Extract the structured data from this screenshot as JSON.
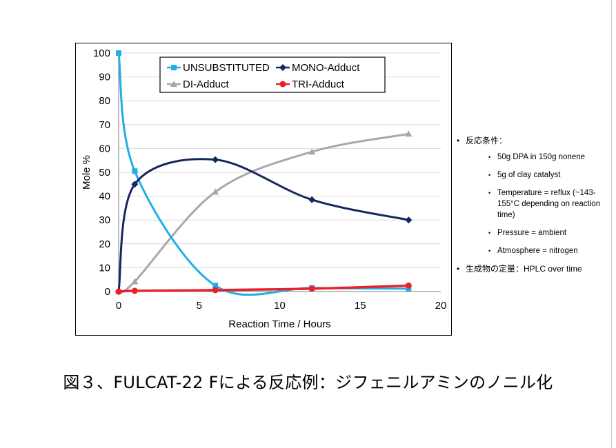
{
  "chart_data": {
    "type": "line",
    "xlabel": "Reaction Time / Hours",
    "ylabel": "Mole %",
    "xlim": [
      0,
      20
    ],
    "ylim": [
      0,
      100
    ],
    "xticks": [
      "0",
      "5",
      "10",
      "15",
      "20"
    ],
    "yticks": [
      "0",
      "10",
      "20",
      "30",
      "40",
      "50",
      "60",
      "70",
      "80",
      "90",
      "100"
    ],
    "grid": true,
    "legend_position": "top-center",
    "series": [
      {
        "name": "UNSUBSTITUTED",
        "color": "#1eaee8",
        "marker": "square",
        "points": [
          [
            0,
            100
          ],
          [
            1,
            50.5
          ],
          [
            6,
            2.5
          ],
          [
            12,
            1.5
          ],
          [
            18,
            1.2
          ]
        ]
      },
      {
        "name": "MONO-Adduct",
        "color": "#14285e",
        "marker": "diamond",
        "points": [
          [
            0,
            0
          ],
          [
            1,
            45
          ],
          [
            6,
            55.3
          ],
          [
            12,
            38.5
          ],
          [
            18,
            30
          ]
        ]
      },
      {
        "name": "DI-Adduct",
        "color": "#a8a8a8",
        "marker": "triangle",
        "points": [
          [
            0,
            0
          ],
          [
            1,
            4.2
          ],
          [
            6,
            41.8
          ],
          [
            12,
            58.6
          ],
          [
            18,
            66.1
          ]
        ]
      },
      {
        "name": "TRI-Adduct",
        "color": "#e8222a",
        "marker": "circle",
        "points": [
          [
            0,
            0
          ],
          [
            1,
            0.3
          ],
          [
            6,
            0.6
          ],
          [
            12,
            1.2
          ],
          [
            18,
            2.5
          ]
        ]
      }
    ]
  },
  "conditions": {
    "heading": "反応条件：",
    "items": [
      "50g DPA in 150g nonene",
      "5g of clay catalyst",
      "Temperature = reflux (~143-155°C depending on reaction time)",
      "Pressure = ambient",
      "Atmosphere = nitrogen"
    ],
    "analysis": "生成物の定量：HPLC over time"
  },
  "caption": "図３、FULCAT-22 Fによる反応例：ジフェニルアミンのノニル化"
}
